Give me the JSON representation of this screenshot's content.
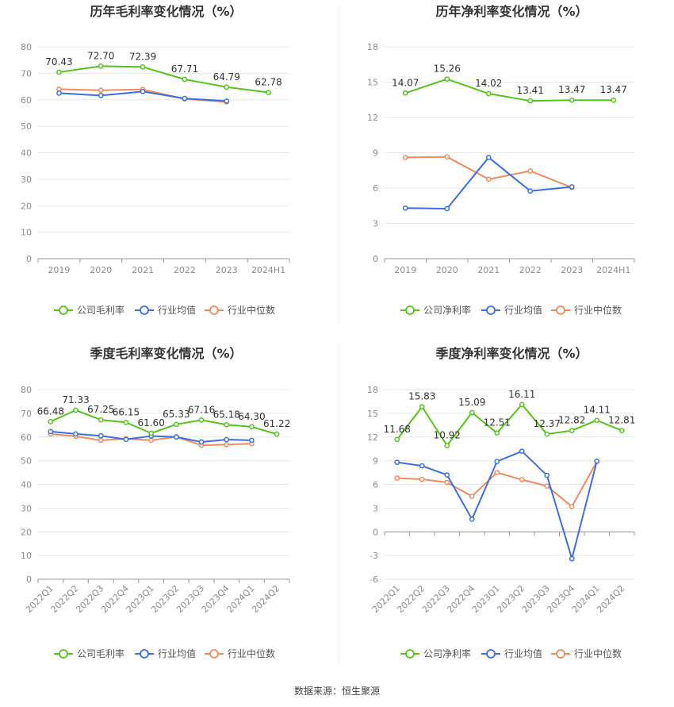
{
  "source_text": "数据来源：恒生聚源",
  "colors": {
    "company": "#52c41a",
    "avg": "#3a6fdc",
    "median": "#f08a5d",
    "grid": "#e6e6e6",
    "axis": "#999999",
    "tick": "#8c8c8c",
    "title": "#333333"
  },
  "chart_data": [
    {
      "id": "annual-gross",
      "type": "line",
      "title": "历年毛利率变化情况（%）",
      "categories": [
        "2019",
        "2020",
        "2021",
        "2022",
        "2023",
        "2024H1"
      ],
      "ylim": [
        0,
        80
      ],
      "yticks": [
        0,
        10,
        20,
        30,
        40,
        50,
        60,
        70,
        80
      ],
      "series": [
        {
          "name": "公司毛利率",
          "key": "company",
          "values": [
            70.43,
            72.7,
            72.39,
            67.71,
            64.79,
            62.78
          ],
          "labels": [
            "70.43",
            "72.70",
            "72.39",
            "67.71",
            "64.79",
            "62.78"
          ]
        },
        {
          "name": "行业均值",
          "key": "avg",
          "values": [
            62.5,
            61.6,
            63.1,
            60.5,
            59.5,
            null
          ]
        },
        {
          "name": "行业中位数",
          "key": "median",
          "values": [
            64.0,
            63.6,
            63.9,
            60.3,
            59.2,
            null
          ]
        }
      ]
    },
    {
      "id": "annual-net",
      "type": "line",
      "title": "历年净利率变化情况（%）",
      "categories": [
        "2019",
        "2020",
        "2021",
        "2022",
        "2023",
        "2024H1"
      ],
      "ylim": [
        0,
        18
      ],
      "yticks": [
        0,
        3,
        6,
        9,
        12,
        15,
        18
      ],
      "series": [
        {
          "name": "公司净利率",
          "key": "company",
          "values": [
            14.07,
            15.26,
            14.02,
            13.41,
            13.47,
            13.47
          ],
          "labels": [
            "14.07",
            "15.26",
            "14.02",
            "13.41",
            "13.47",
            "13.47"
          ]
        },
        {
          "name": "行业均值",
          "key": "avg",
          "values": [
            4.3,
            4.25,
            8.6,
            5.75,
            6.1,
            null
          ]
        },
        {
          "name": "行业中位数",
          "key": "median",
          "values": [
            8.6,
            8.65,
            6.75,
            7.45,
            6.05,
            null
          ]
        }
      ]
    },
    {
      "id": "quarterly-gross",
      "type": "line",
      "title": "季度毛利率变化情况（%）",
      "categories": [
        "2022Q1",
        "2022Q2",
        "2022Q3",
        "2022Q4",
        "2023Q1",
        "2023Q2",
        "2023Q3",
        "2023Q4",
        "2024Q1",
        "2024Q2"
      ],
      "ylim": [
        0,
        80
      ],
      "yticks": [
        0,
        10,
        20,
        30,
        40,
        50,
        60,
        70,
        80
      ],
      "series": [
        {
          "name": "公司毛利率",
          "key": "company",
          "values": [
            66.48,
            71.33,
            67.25,
            66.15,
            61.6,
            65.33,
            67.16,
            65.18,
            64.3,
            61.22
          ],
          "labels": [
            "66.48",
            "71.33",
            "67.25",
            "66.15",
            "61.60",
            "65.33",
            "67.16",
            "65.18",
            "64.30",
            "61.22"
          ]
        },
        {
          "name": "行业均值",
          "key": "avg",
          "values": [
            62.3,
            61.3,
            60.5,
            59.0,
            60.4,
            60.0,
            57.9,
            58.9,
            58.6,
            null
          ]
        },
        {
          "name": "行业中位数",
          "key": "median",
          "values": [
            61.3,
            60.3,
            58.6,
            59.3,
            58.6,
            60.1,
            56.5,
            56.8,
            57.2,
            null
          ]
        }
      ]
    },
    {
      "id": "quarterly-net",
      "type": "line",
      "title": "季度净利率变化情况（%）",
      "categories": [
        "2022Q1",
        "2022Q2",
        "2022Q3",
        "2022Q4",
        "2023Q1",
        "2023Q2",
        "2023Q3",
        "2023Q4",
        "2024Q1",
        "2024Q2"
      ],
      "ylim": [
        -6,
        18
      ],
      "yticks": [
        -6,
        -3,
        0,
        3,
        6,
        9,
        12,
        15,
        18
      ],
      "series": [
        {
          "name": "公司净利率",
          "key": "company",
          "values": [
            11.68,
            15.83,
            10.92,
            15.09,
            12.51,
            16.11,
            12.37,
            12.82,
            14.11,
            12.81
          ],
          "labels": [
            "11.68",
            "15.83",
            "10.92",
            "15.09",
            "12.51",
            "16.11",
            "12.37",
            "12.82",
            "14.11",
            "12.81"
          ]
        },
        {
          "name": "行业均值",
          "key": "avg",
          "values": [
            8.8,
            8.35,
            7.2,
            1.6,
            8.9,
            10.2,
            7.15,
            -3.4,
            8.95,
            null
          ]
        },
        {
          "name": "行业中位数",
          "key": "median",
          "values": [
            6.8,
            6.65,
            6.25,
            4.5,
            7.5,
            6.6,
            5.8,
            3.2,
            8.9,
            null
          ]
        }
      ]
    }
  ]
}
